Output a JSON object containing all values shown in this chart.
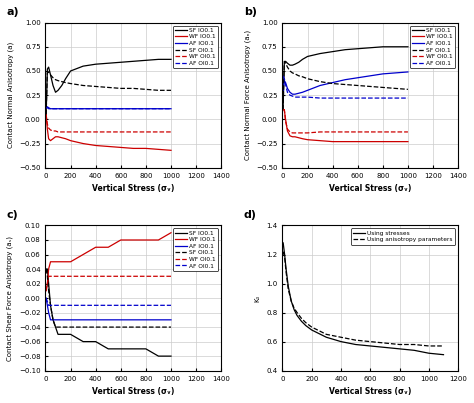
{
  "fig_width": 4.74,
  "fig_height": 4.03,
  "dpi": 100,
  "panel_labels": [
    "a)",
    "b)",
    "c)",
    "d)"
  ],
  "background_color": "#ffffff",
  "grid_color": "#cccccc",
  "panel_a": {
    "ylabel": "Contact Normal Anisotropy (a)",
    "xlabel": "Vertical Stress (σᵥ)",
    "xlim": [
      0,
      1400
    ],
    "ylim": [
      -0.5,
      1.0
    ],
    "yticks": [
      -0.5,
      -0.25,
      0.0,
      0.25,
      0.5,
      0.75,
      1.0
    ],
    "xticks": [
      0,
      200,
      400,
      600,
      800,
      1000,
      1200,
      1400
    ],
    "series": [
      {
        "label": "SF IO0.1",
        "color": "#000000",
        "ls": "solid",
        "lw": 0.9,
        "x": [
          5,
          15,
          25,
          40,
          60,
          80,
          100,
          130,
          160,
          200,
          300,
          400,
          500,
          600,
          700,
          800,
          900,
          1000
        ],
        "y": [
          0.05,
          0.52,
          0.54,
          0.46,
          0.35,
          0.28,
          0.3,
          0.35,
          0.42,
          0.5,
          0.55,
          0.57,
          0.58,
          0.59,
          0.6,
          0.61,
          0.62,
          0.62
        ]
      },
      {
        "label": "WF IO0.1",
        "color": "#cc0000",
        "ls": "solid",
        "lw": 0.9,
        "x": [
          5,
          15,
          25,
          40,
          60,
          80,
          100,
          130,
          160,
          200,
          300,
          400,
          500,
          600,
          700,
          800,
          900,
          1000
        ],
        "y": [
          0.05,
          -0.1,
          -0.2,
          -0.22,
          -0.2,
          -0.18,
          -0.18,
          -0.19,
          -0.2,
          -0.22,
          -0.25,
          -0.27,
          -0.28,
          -0.29,
          -0.3,
          -0.3,
          -0.31,
          -0.32
        ]
      },
      {
        "label": "AF IO0.1",
        "color": "#0000cc",
        "ls": "solid",
        "lw": 0.9,
        "x": [
          5,
          15,
          25,
          40,
          60,
          80,
          100,
          150,
          200,
          400,
          700,
          1000
        ],
        "y": [
          0.12,
          0.13,
          0.12,
          0.11,
          0.11,
          0.11,
          0.11,
          0.11,
          0.11,
          0.11,
          0.11,
          0.11
        ]
      },
      {
        "label": "SF OI0.1",
        "color": "#000000",
        "ls": "dashed",
        "lw": 0.9,
        "x": [
          5,
          15,
          25,
          40,
          60,
          80,
          100,
          130,
          160,
          200,
          300,
          400,
          500,
          600,
          700,
          800,
          900,
          1000
        ],
        "y": [
          0.05,
          0.48,
          0.49,
          0.46,
          0.43,
          0.41,
          0.4,
          0.39,
          0.38,
          0.37,
          0.35,
          0.34,
          0.33,
          0.32,
          0.32,
          0.31,
          0.3,
          0.3
        ]
      },
      {
        "label": "WF OI0.1",
        "color": "#cc0000",
        "ls": "dashed",
        "lw": 0.9,
        "x": [
          5,
          15,
          25,
          40,
          60,
          80,
          100,
          130,
          160,
          200,
          300,
          400,
          500,
          600,
          700,
          800,
          900,
          1000
        ],
        "y": [
          0.05,
          -0.05,
          -0.09,
          -0.11,
          -0.12,
          -0.12,
          -0.13,
          -0.13,
          -0.13,
          -0.13,
          -0.13,
          -0.13,
          -0.13,
          -0.13,
          -0.13,
          -0.13,
          -0.13,
          -0.13
        ]
      },
      {
        "label": "AF OI0.1",
        "color": "#0000cc",
        "ls": "dashed",
        "lw": 0.9,
        "x": [
          5,
          15,
          25,
          40,
          60,
          80,
          100,
          150,
          200,
          400,
          700,
          1000
        ],
        "y": [
          0.12,
          0.12,
          0.11,
          0.11,
          0.11,
          0.11,
          0.11,
          0.11,
          0.11,
          0.11,
          0.11,
          0.11
        ]
      }
    ]
  },
  "panel_b": {
    "ylabel": "Contact Normal Force Anisotropy (aₙ)",
    "xlabel": "Vertical Stress (σᵥ)",
    "xlim": [
      0,
      1400
    ],
    "ylim": [
      -0.5,
      1.0
    ],
    "yticks": [
      -0.5,
      -0.25,
      0.0,
      0.25,
      0.5,
      0.75,
      1.0
    ],
    "xticks": [
      0,
      200,
      400,
      600,
      800,
      1000,
      1200,
      1400
    ],
    "series": [
      {
        "label": "SF IO0.1",
        "color": "#000000",
        "ls": "solid",
        "lw": 0.9,
        "x": [
          5,
          15,
          25,
          40,
          60,
          80,
          100,
          130,
          160,
          200,
          300,
          400,
          500,
          600,
          700,
          800,
          900,
          1000
        ],
        "y": [
          0.1,
          0.58,
          0.6,
          0.58,
          0.56,
          0.56,
          0.57,
          0.59,
          0.62,
          0.65,
          0.68,
          0.7,
          0.72,
          0.73,
          0.74,
          0.75,
          0.75,
          0.75
        ]
      },
      {
        "label": "WF IO0.1",
        "color": "#cc0000",
        "ls": "solid",
        "lw": 0.9,
        "x": [
          5,
          15,
          25,
          40,
          60,
          80,
          100,
          130,
          160,
          200,
          300,
          400,
          500,
          600,
          700,
          800,
          900,
          1000
        ],
        "y": [
          0.1,
          0.1,
          0.0,
          -0.12,
          -0.17,
          -0.18,
          -0.18,
          -0.19,
          -0.2,
          -0.21,
          -0.22,
          -0.23,
          -0.23,
          -0.23,
          -0.23,
          -0.23,
          -0.23,
          -0.23
        ]
      },
      {
        "label": "AF IO0.1",
        "color": "#0000cc",
        "ls": "solid",
        "lw": 0.9,
        "x": [
          5,
          15,
          25,
          40,
          60,
          80,
          100,
          130,
          160,
          200,
          300,
          400,
          500,
          600,
          700,
          800,
          900,
          1000
        ],
        "y": [
          0.3,
          0.4,
          0.38,
          0.32,
          0.28,
          0.26,
          0.26,
          0.27,
          0.28,
          0.3,
          0.35,
          0.38,
          0.41,
          0.43,
          0.45,
          0.47,
          0.48,
          0.49
        ]
      },
      {
        "label": "SF OI0.1",
        "color": "#000000",
        "ls": "dashed",
        "lw": 0.9,
        "x": [
          5,
          15,
          25,
          40,
          60,
          80,
          100,
          130,
          160,
          200,
          300,
          400,
          500,
          600,
          700,
          800,
          900,
          1000
        ],
        "y": [
          0.1,
          0.6,
          0.58,
          0.54,
          0.5,
          0.48,
          0.47,
          0.45,
          0.44,
          0.42,
          0.39,
          0.37,
          0.36,
          0.35,
          0.34,
          0.33,
          0.32,
          0.31
        ]
      },
      {
        "label": "WF OI0.1",
        "color": "#cc0000",
        "ls": "dashed",
        "lw": 0.9,
        "x": [
          5,
          15,
          25,
          40,
          60,
          80,
          100,
          130,
          160,
          200,
          300,
          400,
          500,
          600,
          700,
          800,
          900,
          1000
        ],
        "y": [
          0.1,
          0.1,
          -0.02,
          -0.1,
          -0.13,
          -0.14,
          -0.14,
          -0.14,
          -0.14,
          -0.14,
          -0.13,
          -0.13,
          -0.13,
          -0.13,
          -0.13,
          -0.13,
          -0.13,
          -0.13
        ]
      },
      {
        "label": "AF OI0.1",
        "color": "#0000cc",
        "ls": "dashed",
        "lw": 0.9,
        "x": [
          5,
          15,
          25,
          40,
          60,
          80,
          100,
          130,
          160,
          200,
          300,
          400,
          500,
          600,
          700,
          800,
          900,
          1000
        ],
        "y": [
          0.45,
          0.42,
          0.36,
          0.28,
          0.25,
          0.24,
          0.23,
          0.23,
          0.23,
          0.23,
          0.22,
          0.22,
          0.22,
          0.22,
          0.22,
          0.22,
          0.22,
          0.22
        ]
      }
    ]
  },
  "panel_c": {
    "ylabel": "Contact Shear Force Anisotropy (aₛ)",
    "xlabel": "Vertical Stress (σᵥ)",
    "xlim": [
      0,
      1400
    ],
    "ylim": [
      -0.1,
      0.1
    ],
    "yticks": [
      -0.1,
      -0.08,
      -0.06,
      -0.04,
      -0.02,
      0.0,
      0.02,
      0.04,
      0.06,
      0.08,
      0.1
    ],
    "xticks": [
      0,
      200,
      400,
      600,
      800,
      1000,
      1200,
      1400
    ],
    "series": [
      {
        "label": "SF IO0.1",
        "color": "#000000",
        "ls": "solid",
        "lw": 0.9,
        "x": [
          5,
          15,
          25,
          40,
          60,
          80,
          100,
          130,
          160,
          200,
          300,
          400,
          500,
          600,
          700,
          800,
          900,
          1000
        ],
        "y": [
          0.04,
          0.04,
          0.02,
          -0.01,
          -0.03,
          -0.04,
          -0.05,
          -0.05,
          -0.05,
          -0.05,
          -0.06,
          -0.06,
          -0.07,
          -0.07,
          -0.07,
          -0.07,
          -0.08,
          -0.08
        ]
      },
      {
        "label": "WF IO0.1",
        "color": "#cc0000",
        "ls": "solid",
        "lw": 0.9,
        "x": [
          5,
          15,
          25,
          40,
          60,
          80,
          100,
          130,
          160,
          200,
          300,
          400,
          500,
          600,
          700,
          800,
          900,
          1000
        ],
        "y": [
          0.01,
          0.02,
          0.04,
          0.05,
          0.05,
          0.05,
          0.05,
          0.05,
          0.05,
          0.05,
          0.06,
          0.07,
          0.07,
          0.08,
          0.08,
          0.08,
          0.08,
          0.09
        ]
      },
      {
        "label": "AF IO0.1",
        "color": "#0000cc",
        "ls": "solid",
        "lw": 0.9,
        "x": [
          5,
          15,
          25,
          40,
          60,
          80,
          100,
          130,
          160,
          200,
          300,
          400,
          500,
          600,
          700,
          800,
          900,
          1000
        ],
        "y": [
          0.0,
          -0.01,
          -0.02,
          -0.03,
          -0.03,
          -0.03,
          -0.03,
          -0.03,
          -0.03,
          -0.03,
          -0.03,
          -0.03,
          -0.03,
          -0.03,
          -0.03,
          -0.03,
          -0.03,
          -0.03
        ]
      },
      {
        "label": "SF OI0.1",
        "color": "#000000",
        "ls": "dashed",
        "lw": 0.9,
        "x": [
          5,
          15,
          25,
          40,
          60,
          80,
          100,
          130,
          160,
          200,
          300,
          400,
          500,
          600,
          700,
          800,
          900,
          1000
        ],
        "y": [
          0.04,
          0.03,
          0.01,
          -0.01,
          -0.03,
          -0.04,
          -0.04,
          -0.04,
          -0.04,
          -0.04,
          -0.04,
          -0.04,
          -0.04,
          -0.04,
          -0.04,
          -0.04,
          -0.04,
          -0.04
        ]
      },
      {
        "label": "WF OI0.1",
        "color": "#cc0000",
        "ls": "dashed",
        "lw": 0.9,
        "x": [
          5,
          15,
          25,
          40,
          60,
          80,
          100,
          130,
          160,
          200,
          300,
          400,
          500,
          600,
          700,
          800,
          900,
          1000
        ],
        "y": [
          0.01,
          0.02,
          0.03,
          0.03,
          0.03,
          0.03,
          0.03,
          0.03,
          0.03,
          0.03,
          0.03,
          0.03,
          0.03,
          0.03,
          0.03,
          0.03,
          0.03,
          0.03
        ]
      },
      {
        "label": "AF OI0.1",
        "color": "#0000cc",
        "ls": "dashed",
        "lw": 0.9,
        "x": [
          5,
          15,
          25,
          40,
          60,
          80,
          100,
          130,
          160,
          200,
          300,
          400,
          500,
          600,
          700,
          800,
          900,
          1000
        ],
        "y": [
          0.0,
          -0.005,
          -0.01,
          -0.01,
          -0.01,
          -0.01,
          -0.01,
          -0.01,
          -0.01,
          -0.01,
          -0.01,
          -0.01,
          -0.01,
          -0.01,
          -0.01,
          -0.01,
          -0.01,
          -0.01
        ]
      }
    ]
  },
  "panel_d": {
    "ylabel": "K₀",
    "xlabel": "Vertical Stress (σᵥ)",
    "xlim": [
      0,
      1200
    ],
    "ylim": [
      0.4,
      1.4
    ],
    "yticks": [
      0.4,
      0.6,
      0.8,
      1.0,
      1.2,
      1.4
    ],
    "xticks": [
      0,
      200,
      400,
      600,
      800,
      1000,
      1200
    ],
    "series": [
      {
        "label": "Using stresses",
        "color": "#000000",
        "ls": "solid",
        "lw": 0.9,
        "x": [
          5,
          15,
          25,
          40,
          60,
          80,
          100,
          130,
          160,
          200,
          300,
          400,
          500,
          600,
          700,
          800,
          900,
          1000,
          1100
        ],
        "y": [
          1.28,
          1.2,
          1.1,
          0.98,
          0.88,
          0.82,
          0.78,
          0.74,
          0.71,
          0.68,
          0.63,
          0.6,
          0.58,
          0.57,
          0.56,
          0.55,
          0.54,
          0.52,
          0.51
        ]
      },
      {
        "label": "Using anisotropy parameters",
        "color": "#000000",
        "ls": "dashed",
        "lw": 0.9,
        "x": [
          5,
          15,
          25,
          40,
          60,
          80,
          100,
          130,
          160,
          200,
          300,
          400,
          500,
          600,
          700,
          800,
          900,
          1000,
          1100
        ],
        "y": [
          1.22,
          1.18,
          1.08,
          0.96,
          0.88,
          0.83,
          0.8,
          0.76,
          0.73,
          0.7,
          0.65,
          0.63,
          0.61,
          0.6,
          0.59,
          0.58,
          0.58,
          0.57,
          0.57
        ]
      }
    ]
  }
}
